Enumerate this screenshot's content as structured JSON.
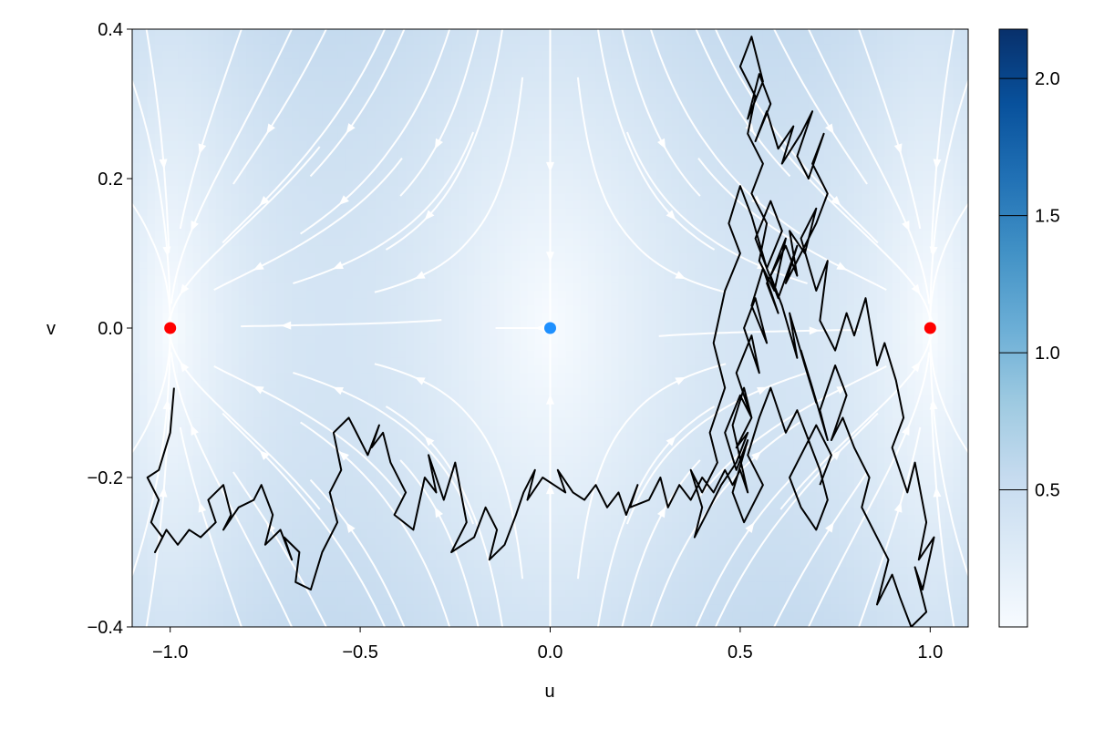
{
  "colors": {
    "field_low": "#f7fbff",
    "field_high": "#08306b",
    "streamline": "#ffffff",
    "trajectory": "#000000",
    "stable_point": "#ff0000",
    "saddle_point": "#1e90ff"
  },
  "chart_data": {
    "type": "heatmap",
    "title": "",
    "xlabel": "u",
    "ylabel": "v",
    "xlim": [
      -1.1,
      1.1
    ],
    "ylim": [
      -0.4,
      0.4
    ],
    "x_ticks": [
      -1.0,
      -0.5,
      0.0,
      0.5,
      1.0
    ],
    "x_tick_labels": [
      "−1.0",
      "−0.5",
      "0.0",
      "0.5",
      "1.0"
    ],
    "y_ticks": [
      -0.4,
      -0.2,
      0.0,
      0.2,
      0.4
    ],
    "y_tick_labels": [
      "−0.4",
      "−0.2",
      "0.0",
      "0.2",
      "0.4"
    ],
    "grid": false,
    "colorscale": "Blues",
    "colorbar": {
      "range": [
        0.0,
        2.18
      ],
      "ticks": [
        0.5,
        1.0,
        1.5,
        2.0
      ],
      "tick_labels": [
        "0.5",
        "1.0",
        "1.5",
        "2.0"
      ]
    },
    "field": "|(u - u^3, -v)|",
    "fixed_points": [
      {
        "u": -1.0,
        "v": 0.0,
        "kind": "stable",
        "color": "#ff0000"
      },
      {
        "u": 0.0,
        "v": 0.0,
        "kind": "saddle",
        "color": "#1e90ff"
      },
      {
        "u": 1.0,
        "v": 0.0,
        "kind": "stable",
        "color": "#ff0000"
      }
    ],
    "trajectory": {
      "u": [
        -0.99,
        -1.0,
        -1.03,
        -1.06,
        -1.03,
        -1.05,
        -1.02,
        -1.04,
        -1.01,
        -0.98,
        -0.95,
        -0.92,
        -0.88,
        -0.9,
        -0.86,
        -0.84,
        -0.86,
        -0.82,
        -0.78,
        -0.76,
        -0.73,
        -0.75,
        -0.71,
        -0.68,
        -0.7,
        -0.66,
        -0.67,
        -0.63,
        -0.6,
        -0.56,
        -0.58,
        -0.55,
        -0.57,
        -0.53,
        -0.5,
        -0.52,
        -0.48,
        -0.45,
        -0.47,
        -0.44,
        -0.42,
        -0.38,
        -0.41,
        -0.36,
        -0.33,
        -0.3,
        -0.32,
        -0.28,
        -0.25,
        -0.22,
        -0.26,
        -0.2,
        -0.17,
        -0.14,
        -0.16,
        -0.12,
        -0.09,
        -0.07,
        -0.04,
        -0.06,
        -0.02,
        0.01,
        0.04,
        0.02,
        0.06,
        0.09,
        0.12,
        0.15,
        0.18,
        0.2,
        0.23,
        0.21,
        0.26,
        0.29,
        0.31,
        0.34,
        0.37,
        0.4,
        0.43,
        0.46,
        0.48,
        0.5,
        0.52,
        0.48,
        0.51,
        0.53,
        0.49,
        0.53,
        0.55,
        0.51,
        0.54,
        0.57,
        0.53,
        0.56,
        0.6,
        0.57,
        0.62,
        0.65,
        0.63,
        0.67,
        0.7,
        0.66,
        0.7,
        0.73,
        0.71,
        0.75,
        0.78,
        0.8,
        0.83,
        0.86,
        0.88,
        0.91,
        0.93,
        0.9,
        0.94,
        0.96,
        0.99,
        0.97,
        1.01,
        0.98,
        0.96,
        0.99,
        0.95,
        0.92,
        0.9,
        0.86,
        0.89,
        0.85,
        0.82,
        0.84,
        0.8,
        0.77,
        0.74,
        0.78,
        0.75,
        0.71,
        0.73,
        0.69,
        0.66,
        0.7,
        0.67,
        0.63,
        0.65,
        0.61,
        0.58,
        0.62,
        0.59,
        0.55,
        0.57,
        0.53,
        0.56,
        0.52,
        0.54,
        0.5,
        0.53,
        0.56,
        0.52,
        0.55,
        0.58,
        0.54,
        0.57,
        0.6,
        0.64,
        0.61,
        0.66,
        0.69,
        0.65,
        0.68,
        0.72,
        0.69,
        0.73,
        0.7,
        0.66,
        0.62,
        0.65,
        0.6,
        0.57,
        0.61,
        0.58,
        0.54,
        0.57,
        0.53,
        0.5,
        0.47,
        0.5,
        0.46,
        0.43,
        0.46,
        0.42,
        0.44,
        0.4,
        0.37,
        0.4,
        0.38,
        0.42,
        0.45,
        0.49,
        0.52,
        0.49,
        0.53,
        0.5,
        0.46,
        0.49,
        0.52,
        0.48,
        0.51,
        0.56,
        0.52,
        0.55,
        0.58,
        0.62,
        0.65,
        0.68,
        0.71,
        0.73,
        0.7,
        0.66,
        0.63,
        0.67,
        0.7,
        0.74,
        0.71
      ],
      "v": [
        -0.08,
        -0.14,
        -0.19,
        -0.2,
        -0.23,
        -0.26,
        -0.28,
        -0.3,
        -0.27,
        -0.29,
        -0.27,
        -0.28,
        -0.26,
        -0.23,
        -0.21,
        -0.25,
        -0.27,
        -0.24,
        -0.23,
        -0.21,
        -0.25,
        -0.29,
        -0.27,
        -0.31,
        -0.28,
        -0.3,
        -0.34,
        -0.35,
        -0.3,
        -0.26,
        -0.22,
        -0.19,
        -0.14,
        -0.12,
        -0.15,
        -0.13,
        -0.17,
        -0.13,
        -0.16,
        -0.14,
        -0.18,
        -0.22,
        -0.25,
        -0.27,
        -0.2,
        -0.22,
        -0.17,
        -0.23,
        -0.18,
        -0.26,
        -0.3,
        -0.28,
        -0.24,
        -0.27,
        -0.31,
        -0.29,
        -0.25,
        -0.22,
        -0.19,
        -0.23,
        -0.2,
        -0.21,
        -0.22,
        -0.19,
        -0.22,
        -0.23,
        -0.21,
        -0.24,
        -0.22,
        -0.25,
        -0.21,
        -0.24,
        -0.23,
        -0.2,
        -0.24,
        -0.21,
        -0.23,
        -0.2,
        -0.22,
        -0.19,
        -0.21,
        -0.19,
        -0.22,
        -0.13,
        -0.08,
        -0.12,
        -0.06,
        -0.01,
        -0.06,
        0.0,
        0.04,
        -0.02,
        0.03,
        0.08,
        0.02,
        0.06,
        0.11,
        0.07,
        0.13,
        0.1,
        0.16,
        0.12,
        0.05,
        0.09,
        0.01,
        -0.03,
        0.02,
        -0.01,
        0.04,
        -0.05,
        -0.02,
        -0.07,
        -0.12,
        -0.16,
        -0.22,
        -0.18,
        -0.26,
        -0.31,
        -0.28,
        -0.35,
        -0.32,
        -0.38,
        -0.4,
        -0.36,
        -0.33,
        -0.37,
        -0.31,
        -0.27,
        -0.24,
        -0.2,
        -0.16,
        -0.12,
        -0.15,
        -0.09,
        -0.05,
        -0.11,
        -0.15,
        -0.08,
        -0.03,
        -0.1,
        -0.05,
        0.02,
        -0.04,
        0.03,
        0.07,
        0.12,
        0.05,
        0.09,
        0.14,
        0.18,
        0.22,
        0.26,
        0.31,
        0.35,
        0.39,
        0.33,
        0.28,
        0.34,
        0.3,
        0.25,
        0.29,
        0.24,
        0.27,
        0.22,
        0.26,
        0.29,
        0.23,
        0.2,
        0.26,
        0.22,
        0.18,
        0.14,
        0.1,
        0.06,
        0.11,
        0.04,
        0.08,
        0.13,
        0.17,
        0.12,
        0.08,
        0.15,
        0.19,
        0.14,
        0.1,
        0.05,
        -0.02,
        -0.08,
        -0.14,
        -0.18,
        -0.22,
        -0.19,
        -0.24,
        -0.28,
        -0.24,
        -0.21,
        -0.18,
        -0.14,
        -0.16,
        -0.12,
        -0.09,
        -0.14,
        -0.19,
        -0.15,
        -0.22,
        -0.26,
        -0.21,
        -0.17,
        -0.12,
        -0.08,
        -0.14,
        -0.11,
        -0.15,
        -0.19,
        -0.23,
        -0.27,
        -0.24,
        -0.2,
        -0.16,
        -0.13,
        -0.17,
        -0.21
      ]
    }
  }
}
